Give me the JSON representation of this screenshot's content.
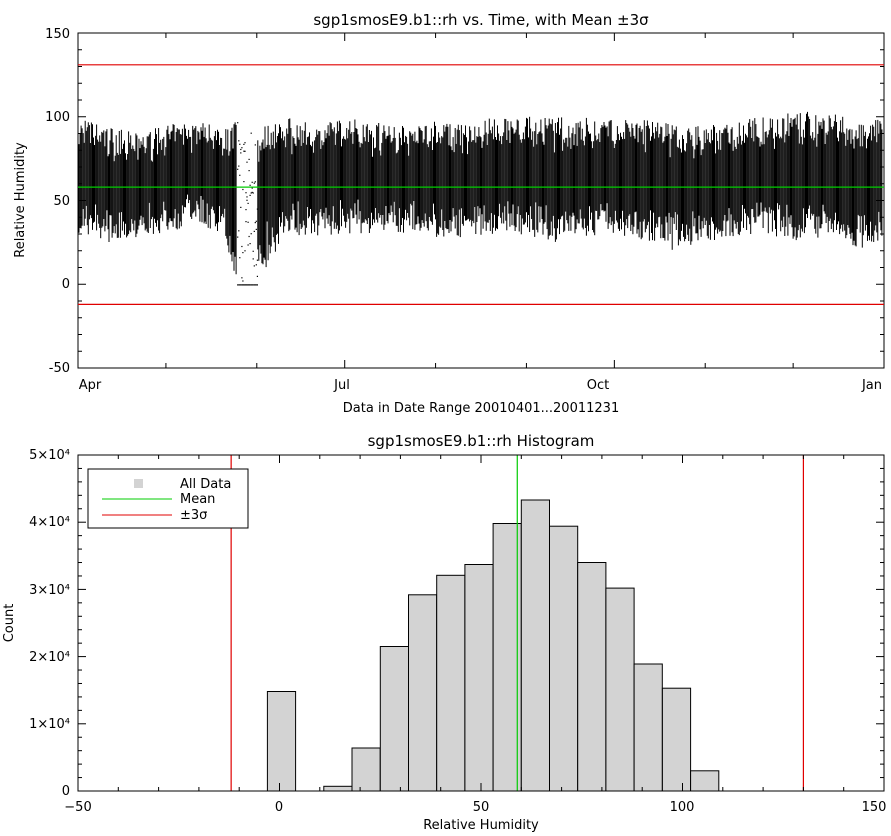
{
  "chart_data": [
    {
      "type": "scatter",
      "title": "sgp1smosE9.b1::rh vs. Time, with Mean ±3σ",
      "xlabel": "Data in Date Range 20010401...20011231",
      "ylabel": "Relative Humidity",
      "xlim": [
        "2001-04-01",
        "2002-01-01"
      ],
      "ylim": [
        -50,
        150
      ],
      "x_ticks": [
        "Apr",
        "Jul",
        "Oct",
        "Jan"
      ],
      "y_ticks": [
        "-50",
        "0",
        "50",
        "100",
        "150"
      ],
      "mean": 58,
      "minus_3sigma": -12,
      "plus_3sigma": 131,
      "series": [
        {
          "x": [
            "2001-04-01",
            "2001-04-11",
            "2001-04-21",
            "2001-05-01",
            "2001-05-11",
            "2001-05-21",
            "2001-05-25",
            "2001-06-01",
            "2001-06-11",
            "2001-06-21",
            "2001-07-01",
            "2001-07-11",
            "2001-07-21",
            "2001-08-01",
            "2001-08-11",
            "2001-08-21",
            "2001-09-01",
            "2001-09-11",
            "2001-09-21",
            "2001-10-01",
            "2001-10-11",
            "2001-10-21",
            "2001-11-01",
            "2001-11-11",
            "2001-11-21",
            "2001-12-01",
            "2001-12-11",
            "2001-12-21",
            "2001-12-31"
          ],
          "low": [
            30,
            25,
            28,
            30,
            35,
            30,
            0,
            0,
            30,
            28,
            30,
            30,
            30,
            28,
            28,
            30,
            28,
            25,
            28,
            30,
            25,
            20,
            25,
            28,
            30,
            25,
            28,
            20,
            25
          ],
          "high": [
            100,
            95,
            90,
            95,
            98,
            95,
            100,
            95,
            100,
            95,
            100,
            98,
            95,
            98,
            95,
            100,
            100,
            100,
            100,
            98,
            100,
            95,
            95,
            98,
            100,
            103,
            103,
            100,
            98
          ]
        }
      ]
    },
    {
      "type": "bar",
      "title": "sgp1smosE9.b1::rh Histogram",
      "xlabel": "Relative Humidity",
      "ylabel": "Count",
      "xlim": [
        -50,
        150
      ],
      "ylim": [
        0,
        50000
      ],
      "x_ticks": [
        "−50",
        "0",
        "50",
        "100",
        "150"
      ],
      "y_ticks": [
        "0",
        "1×10⁴",
        "2×10⁴",
        "3×10⁴",
        "4×10⁴",
        "5×10⁴"
      ],
      "bin_width": 7,
      "bin_starts": [
        -3,
        4,
        11,
        18,
        25,
        32,
        39,
        46,
        53,
        60,
        67,
        74,
        81,
        88,
        95,
        102
      ],
      "values": [
        14800,
        0,
        700,
        6400,
        21500,
        29200,
        32100,
        33700,
        39800,
        43300,
        39400,
        34000,
        30200,
        18900,
        15300,
        3000
      ],
      "mean": 59,
      "minus_3sigma": -12,
      "plus_3sigma": 130,
      "legend": {
        "position": "top-left",
        "entries": [
          {
            "label": "All Data",
            "color": "#d3d3d3",
            "kind": "box"
          },
          {
            "label": "Mean",
            "color": "#00cc00",
            "kind": "line"
          },
          {
            "label": "±3σ",
            "color": "#e00000",
            "kind": "line"
          }
        ]
      }
    }
  ],
  "colors": {
    "mean": "#00cc00",
    "sigma": "#e00000",
    "bar_fill": "#d3d3d3",
    "data": "#000000"
  }
}
